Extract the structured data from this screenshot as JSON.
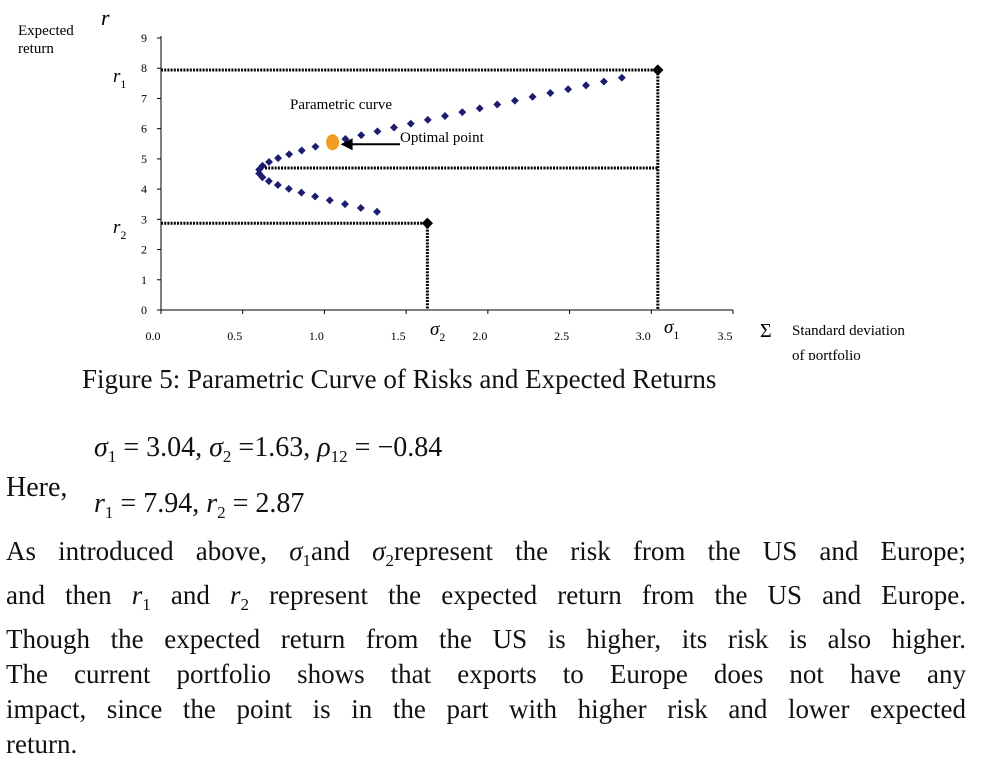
{
  "chart_data": {
    "type": "scatter",
    "ylabel": "Expected return",
    "ylabel_symbol": "r",
    "xlabel": "Standard deviation of portfolio",
    "xlabel_symbol": "Σ",
    "xlim": [
      0,
      3.5
    ],
    "ylim": [
      0,
      9
    ],
    "x_ticks": [
      "0.0",
      "0.5",
      "1.0",
      "1.5",
      "2.0",
      "2.5",
      "3.0",
      "3.5"
    ],
    "y_ticks": [
      "0",
      "1",
      "2",
      "3",
      "4",
      "5",
      "6",
      "7",
      "8",
      "9"
    ],
    "x_tick_values": [
      0,
      0.5,
      1.0,
      1.5,
      2.0,
      2.5,
      3.0,
      3.5
    ],
    "y_tick_values": [
      0,
      1,
      2,
      3,
      4,
      5,
      6,
      7,
      8,
      9
    ],
    "sigma1": 3.04,
    "sigma2": 1.63,
    "rho12": -0.84,
    "r1": 7.94,
    "r2": 2.87,
    "min_variance_return": 4.7,
    "optimal_point": {
      "x": 1.05,
      "y": 5.55
    },
    "annotations": {
      "curve": "Parametric curve",
      "optimal": "Optimal point",
      "r1": "r",
      "r1_sub": "1",
      "r2": "r",
      "r2_sub": "2",
      "sigma1": "σ",
      "sigma1_sub": "1",
      "sigma2": "σ",
      "sigma2_sub": "2"
    },
    "colors": {
      "curve": "#1b1e6e",
      "optimal": "#f39c1f",
      "lines": "#000000"
    }
  },
  "caption": "Figure 5: Parametric Curve of Risks and Expected Returns",
  "equations": {
    "line1": {
      "s": "σ",
      "s1": "1",
      "eq1": " = 3.04, ",
      "s2sym": "σ",
      "s2": "2",
      "eq2": " =1.63, ",
      "rho": "ρ",
      "rho_sub": "12",
      "eq3": " = −0.84"
    },
    "here": "Here,",
    "line2": {
      "r": "r",
      "r1": "1",
      "eq1": " = 7.94, ",
      "r2sym": "r",
      "r2": "2",
      "eq2": " = 2.87"
    }
  },
  "paragraph": {
    "l1a": "As introduced above, ",
    "l1s1": "σ",
    "l1s1sub": "1",
    "l1b": "and ",
    "l1s2": "σ",
    "l1s2sub": "2",
    "l1c": "represent the risk from the US and Europe;",
    "l2a": "and then ",
    "l2r1": "r",
    "l2r1sub": "1",
    "l2b": " and ",
    "l2r2": "r",
    "l2r2sub": "2",
    "l2c": " represent the expected return from the US and Europe.",
    "l3": "Though the expected return from the US is higher, its risk is also higher.",
    "l4": "The current portfolio shows that exports to Europe does not have any",
    "l5": "impact, since the point is in the part with higher risk and lower expected",
    "l6": "return."
  }
}
